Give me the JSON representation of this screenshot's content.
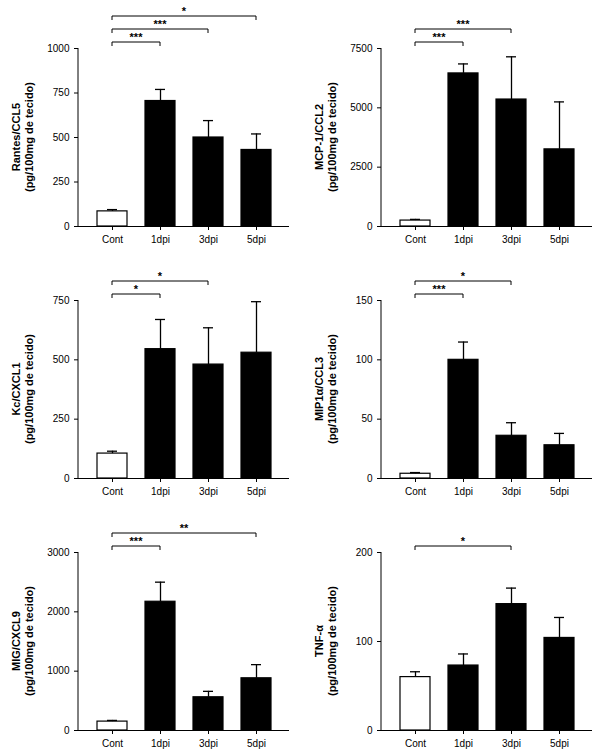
{
  "chart_data": [
    {
      "type": "bar",
      "ylabel": [
        "Rantes/CCL5",
        "(pg/100mg de tecido)"
      ],
      "categories": [
        "Cont",
        "1dpi",
        "3dpi",
        "5dpi"
      ],
      "values": [
        85,
        705,
        500,
        430
      ],
      "errors": [
        10,
        65,
        95,
        90
      ],
      "colors": [
        "#ffffff",
        "#000000",
        "#000000",
        "#000000"
      ],
      "ylim": [
        0,
        1000
      ],
      "yticks": [
        0,
        250,
        500,
        750,
        1000
      ],
      "significance": [
        {
          "from": "Cont",
          "to": "1dpi",
          "label": "***"
        },
        {
          "from": "Cont",
          "to": "3dpi",
          "label": "***"
        },
        {
          "from": "Cont",
          "to": "5dpi",
          "label": "*"
        }
      ]
    },
    {
      "type": "bar",
      "ylabel": [
        "MCP-1/CCL2",
        "(pg/100mg de tecido)"
      ],
      "categories": [
        "Cont",
        "1dpi",
        "3dpi",
        "5dpi"
      ],
      "values": [
        250,
        6450,
        5350,
        3250
      ],
      "errors": [
        50,
        400,
        1800,
        2000
      ],
      "colors": [
        "#ffffff",
        "#000000",
        "#000000",
        "#000000"
      ],
      "ylim": [
        0,
        7500
      ],
      "yticks": [
        0,
        2500,
        5000,
        7500
      ],
      "significance": [
        {
          "from": "Cont",
          "to": "1dpi",
          "label": "***"
        },
        {
          "from": "Cont",
          "to": "3dpi",
          "label": "***"
        }
      ]
    },
    {
      "type": "bar",
      "ylabel": [
        "Kc/CXCL1",
        "(pg/100mg de tecido)"
      ],
      "categories": [
        "Cont",
        "1dpi",
        "3dpi",
        "5dpi"
      ],
      "values": [
        105,
        545,
        480,
        530
      ],
      "errors": [
        10,
        125,
        155,
        215
      ],
      "colors": [
        "#ffffff",
        "#000000",
        "#000000",
        "#000000"
      ],
      "ylim": [
        0,
        750
      ],
      "yticks": [
        0,
        250,
        500,
        750
      ],
      "significance": [
        {
          "from": "Cont",
          "to": "1dpi",
          "label": "*"
        },
        {
          "from": "Cont",
          "to": "3dpi",
          "label": "*"
        }
      ]
    },
    {
      "type": "bar",
      "ylabel": [
        "MIP1α/CCL3",
        "(pg/100mg de tecido)"
      ],
      "categories": [
        "Cont",
        "1dpi",
        "3dpi",
        "5dpi"
      ],
      "values": [
        4,
        100,
        36,
        28
      ],
      "errors": [
        1,
        15,
        11,
        10
      ],
      "colors": [
        "#ffffff",
        "#000000",
        "#000000",
        "#000000"
      ],
      "ylim": [
        0,
        150
      ],
      "yticks": [
        0,
        50,
        100,
        150
      ],
      "significance": [
        {
          "from": "Cont",
          "to": "1dpi",
          "label": "***"
        },
        {
          "from": "Cont",
          "to": "3dpi",
          "label": "*"
        }
      ]
    },
    {
      "type": "bar",
      "ylabel": [
        "MIG/CXCL9",
        "(pg/100mg de tecido)"
      ],
      "categories": [
        "Cont",
        "1dpi",
        "3dpi",
        "5dpi"
      ],
      "values": [
        150,
        2170,
        560,
        880
      ],
      "errors": [
        20,
        330,
        100,
        230
      ],
      "colors": [
        "#ffffff",
        "#000000",
        "#000000",
        "#000000"
      ],
      "ylim": [
        0,
        3000
      ],
      "yticks": [
        0,
        1000,
        2000,
        3000
      ],
      "significance": [
        {
          "from": "Cont",
          "to": "1dpi",
          "label": "***"
        },
        {
          "from": "Cont",
          "to": "5dpi",
          "label": "**"
        }
      ]
    },
    {
      "type": "bar",
      "ylabel": [
        "TNF-α",
        "(pg/100mg de tecido)"
      ],
      "categories": [
        "Cont",
        "1dpi",
        "3dpi",
        "5dpi"
      ],
      "values": [
        60,
        73,
        142,
        104
      ],
      "errors": [
        6,
        13,
        18,
        23
      ],
      "colors": [
        "#ffffff",
        "#000000",
        "#000000",
        "#000000"
      ],
      "ylim": [
        0,
        200
      ],
      "yticks": [
        0,
        100,
        200
      ],
      "significance": [
        {
          "from": "Cont",
          "to": "3dpi",
          "label": "*"
        }
      ]
    }
  ]
}
